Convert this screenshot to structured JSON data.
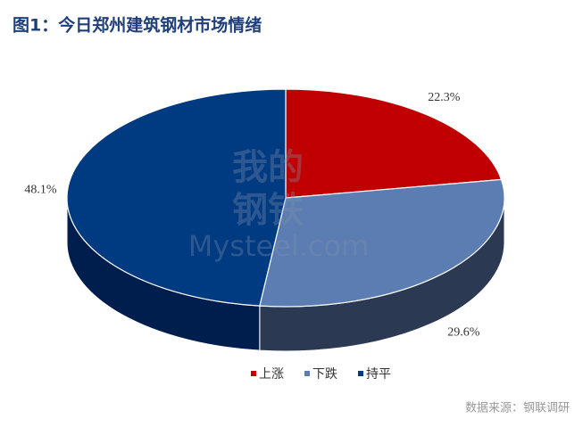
{
  "chart_data": {
    "type": "pie3d",
    "title": "图1：今日郑州建筑钢材市场情绪",
    "categories": [
      "上涨",
      "下跌",
      "持平"
    ],
    "values": [
      22.3,
      29.6,
      48.1
    ],
    "value_labels": [
      "22.3%",
      "29.6%",
      "48.1%"
    ],
    "colors": [
      "#c00000",
      "#5b7db1",
      "#003a80"
    ],
    "side_colors": [
      "#7a0000",
      "#2b3a52",
      "#001e4d"
    ],
    "watermark": [
      "我的",
      "钢铁",
      "Mysteel.com"
    ],
    "source": "数据来源：钢联调研"
  }
}
